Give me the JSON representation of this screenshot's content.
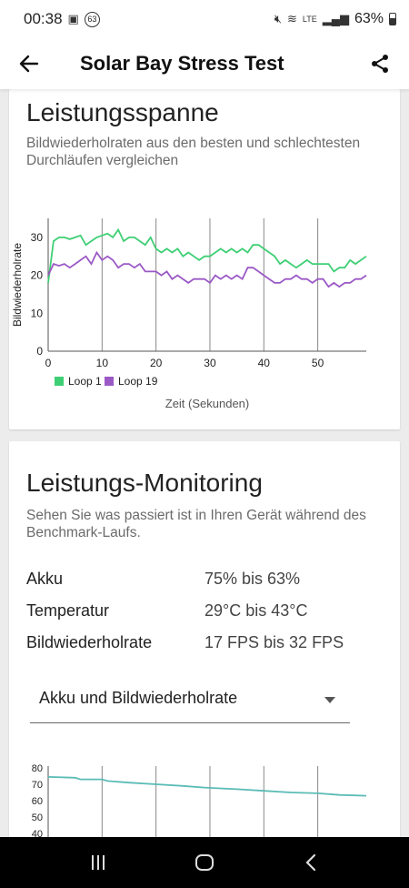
{
  "status_bar": {
    "time": "00:38",
    "notification_badge": "63",
    "battery_percent": "63%",
    "network_label": "LTE"
  },
  "app_bar": {
    "title": "Solar Bay Stress Test"
  },
  "range_card": {
    "title": "Leistungsspanne",
    "subtitle": "Bildwiederholraten aus den besten und schlechtesten Durchläufen vergleichen"
  },
  "monitoring_card": {
    "title": "Leistungs-Monitoring",
    "subtitle": "Sehen Sie was passiert ist in Ihren Gerät während des Benchmark-Laufs.",
    "rows": [
      {
        "label": "Akku",
        "value": "75% bis 63%"
      },
      {
        "label": "Temperatur",
        "value": "29°C bis 43°C"
      },
      {
        "label": "Bildwiederholrate",
        "value": "17 FPS bis 32 FPS"
      }
    ],
    "dropdown": {
      "selected": "Akku und Bildwiederholrate"
    }
  },
  "colors": {
    "loop1": "#3ecf74",
    "loop19": "#9b59c6",
    "battery_line": "#5bbcb6"
  },
  "chart_data": [
    {
      "type": "line",
      "xlabel": "Zeit (Sekunden)",
      "ylabel": "Bildwiederholrate",
      "xlim": [
        0,
        59
      ],
      "ylim": [
        0,
        35
      ],
      "xticks": [
        0,
        10,
        20,
        30,
        40,
        50
      ],
      "yticks": [
        0,
        10,
        20,
        30
      ],
      "grid": "vertical",
      "legend_position": "bottom-left",
      "series": [
        {
          "name": "Loop 1",
          "color": "#3ecf74",
          "x": [
            0,
            1,
            2,
            3,
            4,
            5,
            6,
            7,
            8,
            9,
            10,
            11,
            12,
            13,
            14,
            15,
            16,
            17,
            18,
            19,
            20,
            21,
            22,
            23,
            24,
            25,
            26,
            27,
            28,
            29,
            30,
            31,
            32,
            33,
            34,
            35,
            36,
            37,
            38,
            39,
            40,
            41,
            42,
            43,
            44,
            45,
            46,
            47,
            48,
            49,
            50,
            51,
            52,
            53,
            54,
            55,
            56,
            57,
            58,
            59
          ],
          "values": [
            18,
            29,
            30,
            30,
            29.5,
            30,
            30.5,
            28,
            29,
            30,
            30.5,
            31,
            30,
            32,
            29,
            30,
            30,
            29,
            28,
            30,
            27,
            26,
            27,
            26,
            27,
            25,
            26,
            25,
            24,
            25,
            25,
            26,
            27,
            26,
            27,
            26,
            27,
            26,
            28,
            28,
            27,
            26,
            25,
            23,
            24,
            23,
            22,
            23,
            24,
            23,
            23,
            23,
            23,
            21,
            22,
            22,
            24,
            23,
            24,
            25
          ]
        },
        {
          "name": "Loop 19",
          "color": "#9b59c6",
          "x": [
            0,
            1,
            2,
            3,
            4,
            5,
            6,
            7,
            8,
            9,
            10,
            11,
            12,
            13,
            14,
            15,
            16,
            17,
            18,
            19,
            20,
            21,
            22,
            23,
            24,
            25,
            26,
            27,
            28,
            29,
            30,
            31,
            32,
            33,
            34,
            35,
            36,
            37,
            38,
            39,
            40,
            41,
            42,
            43,
            44,
            45,
            46,
            47,
            48,
            49,
            50,
            51,
            52,
            53,
            54,
            55,
            56,
            57,
            58,
            59
          ],
          "values": [
            20,
            23,
            22.5,
            23,
            22,
            23,
            24,
            25,
            23,
            26,
            24,
            25,
            24,
            22,
            23,
            23,
            22,
            23,
            21,
            21,
            21,
            20,
            21,
            19,
            20,
            19,
            18,
            19,
            19,
            19,
            18,
            20,
            19,
            20,
            19,
            20,
            19,
            22,
            22,
            21,
            20,
            19,
            18,
            18,
            19,
            19,
            20,
            19,
            19,
            18,
            19,
            19,
            17,
            18,
            17,
            18,
            18,
            19,
            19,
            20
          ]
        }
      ]
    },
    {
      "type": "line",
      "ylim": [
        40,
        80
      ],
      "yticks": [
        40,
        50,
        60,
        70,
        80
      ],
      "grid": "vertical",
      "series": [
        {
          "color": "#5bbcb6",
          "x": [
            0,
            5,
            6,
            10,
            11,
            15,
            20,
            25,
            29,
            35,
            40,
            45,
            50,
            54,
            59
          ],
          "values": [
            74.5,
            74,
            73,
            73,
            72,
            71,
            70,
            69,
            68,
            67,
            66,
            65,
            64.5,
            63.5,
            63
          ]
        }
      ]
    }
  ]
}
